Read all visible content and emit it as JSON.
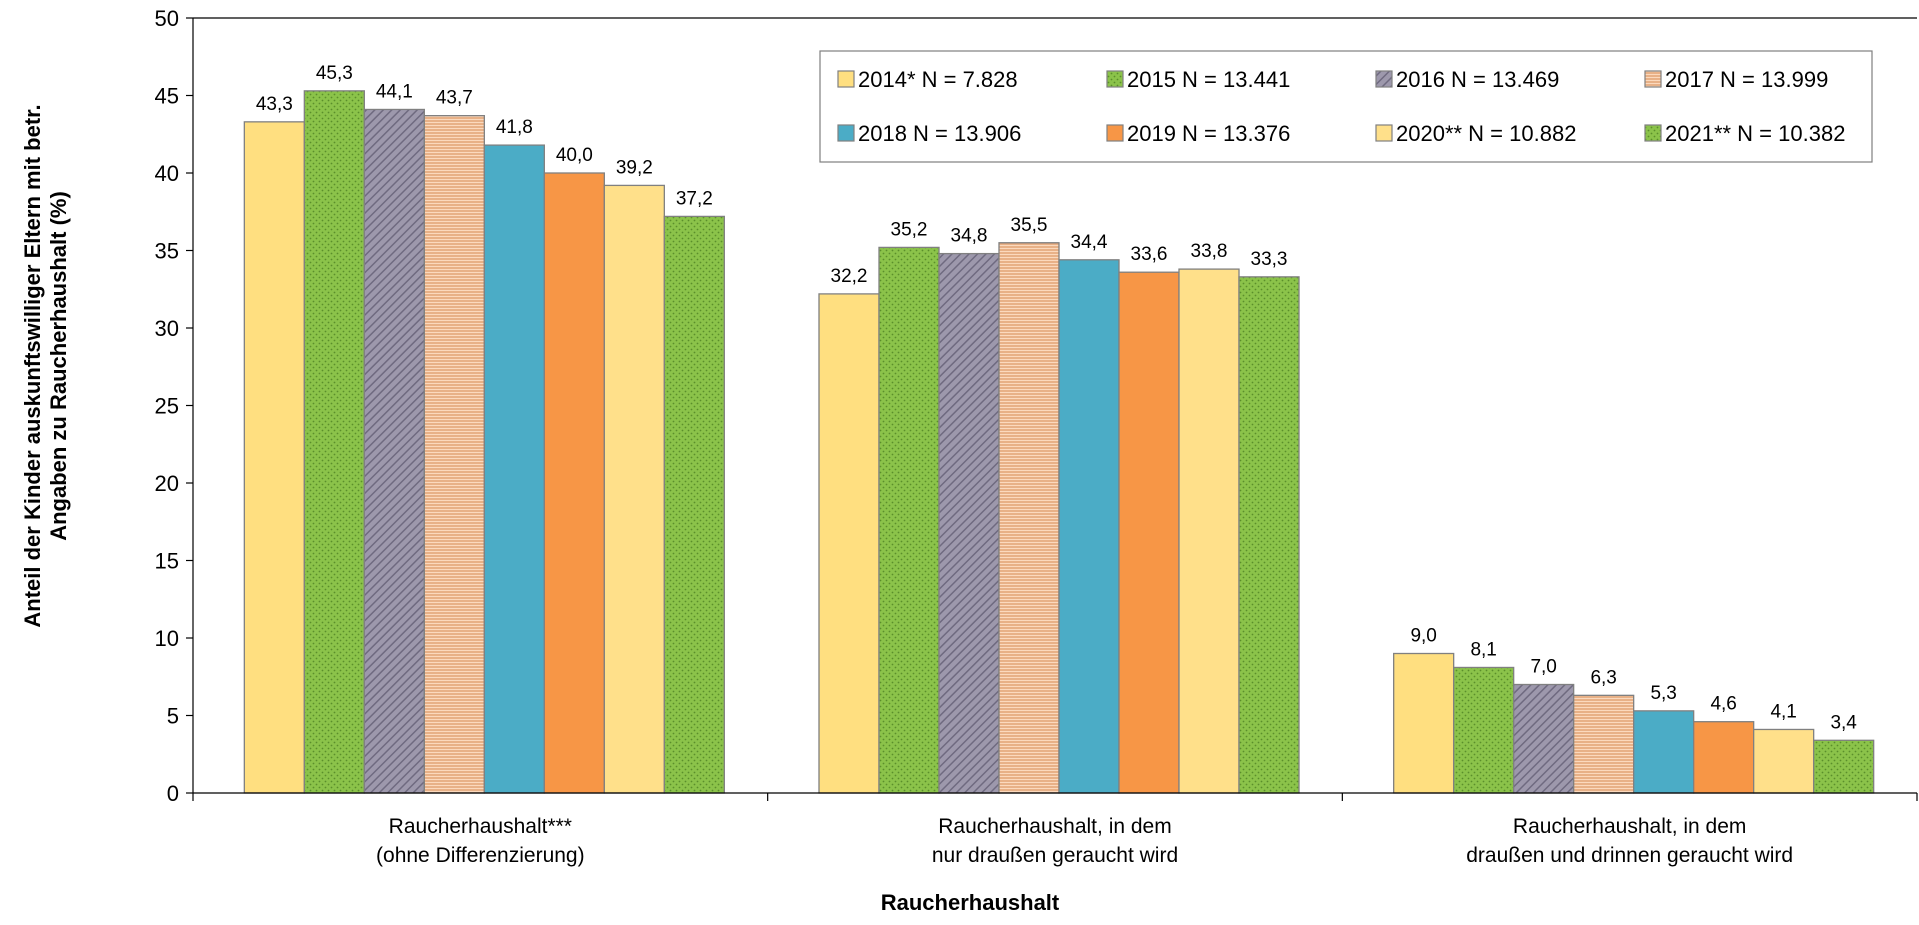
{
  "chart_data": {
    "type": "bar",
    "xlabel": "Raucherhaushalt",
    "ylabel_lines": [
      "Anteil der Kinder auskunftswilliger Eltern mit betr.",
      "Angaben zu Raucherhaushalt (%)"
    ],
    "ylim": [
      0,
      50
    ],
    "yticks": [
      0,
      5,
      10,
      15,
      20,
      25,
      30,
      35,
      40,
      45,
      50
    ],
    "grid": false,
    "legend_position": "top-right",
    "categories": [
      [
        "Raucherhaushalt***",
        "(ohne Differenzierung)"
      ],
      [
        "Raucherhaushalt, in dem",
        "nur draußen geraucht wird"
      ],
      [
        "Raucherhaushalt, in dem",
        "draußen und drinnen geraucht wird"
      ]
    ],
    "series": [
      {
        "name": "2014* N = 7.828",
        "color": "#ffdf80",
        "pattern": "solid",
        "values": [
          43.3,
          32.2,
          9.0
        ],
        "labels": [
          "43,3",
          "32,2",
          "9,0"
        ]
      },
      {
        "name": "2015 N = 13.441",
        "color": "#8bc34a",
        "pattern": "dots",
        "values": [
          45.3,
          35.2,
          8.1
        ],
        "labels": [
          "45,3",
          "35,2",
          "8,1"
        ]
      },
      {
        "name": "2016 N = 13.469",
        "color": "#9d98ac",
        "pattern": "diagonal",
        "values": [
          44.1,
          34.8,
          7.0
        ],
        "labels": [
          "44,1",
          "34,8",
          "7,0"
        ]
      },
      {
        "name": "2017 N = 13.999",
        "color": "#f9c8a2",
        "pattern": "hlines",
        "values": [
          43.7,
          35.5,
          6.3
        ],
        "labels": [
          "43,7",
          "35,5",
          "6,3"
        ]
      },
      {
        "name": "2018 N = 13.906",
        "color": "#4bacc6",
        "pattern": "solid",
        "values": [
          41.8,
          34.4,
          5.3
        ],
        "labels": [
          "41,8",
          "34,4",
          "5,3"
        ]
      },
      {
        "name": "2019 N = 13.376",
        "color": "#f79646",
        "pattern": "solid",
        "values": [
          40.0,
          33.6,
          4.6
        ],
        "labels": [
          "40,0",
          "33,6",
          "4,6"
        ]
      },
      {
        "name": "2020** N = 10.882",
        "color": "#ffe08a",
        "pattern": "solid",
        "values": [
          39.2,
          33.8,
          4.1
        ],
        "labels": [
          "39,2",
          "33,8",
          "4,1"
        ]
      },
      {
        "name": "2021** N = 10.382",
        "color": "#8bc34a",
        "pattern": "dots",
        "values": [
          37.2,
          33.3,
          3.4
        ],
        "labels": [
          "37,2",
          "33,3",
          "3,4"
        ]
      }
    ]
  }
}
